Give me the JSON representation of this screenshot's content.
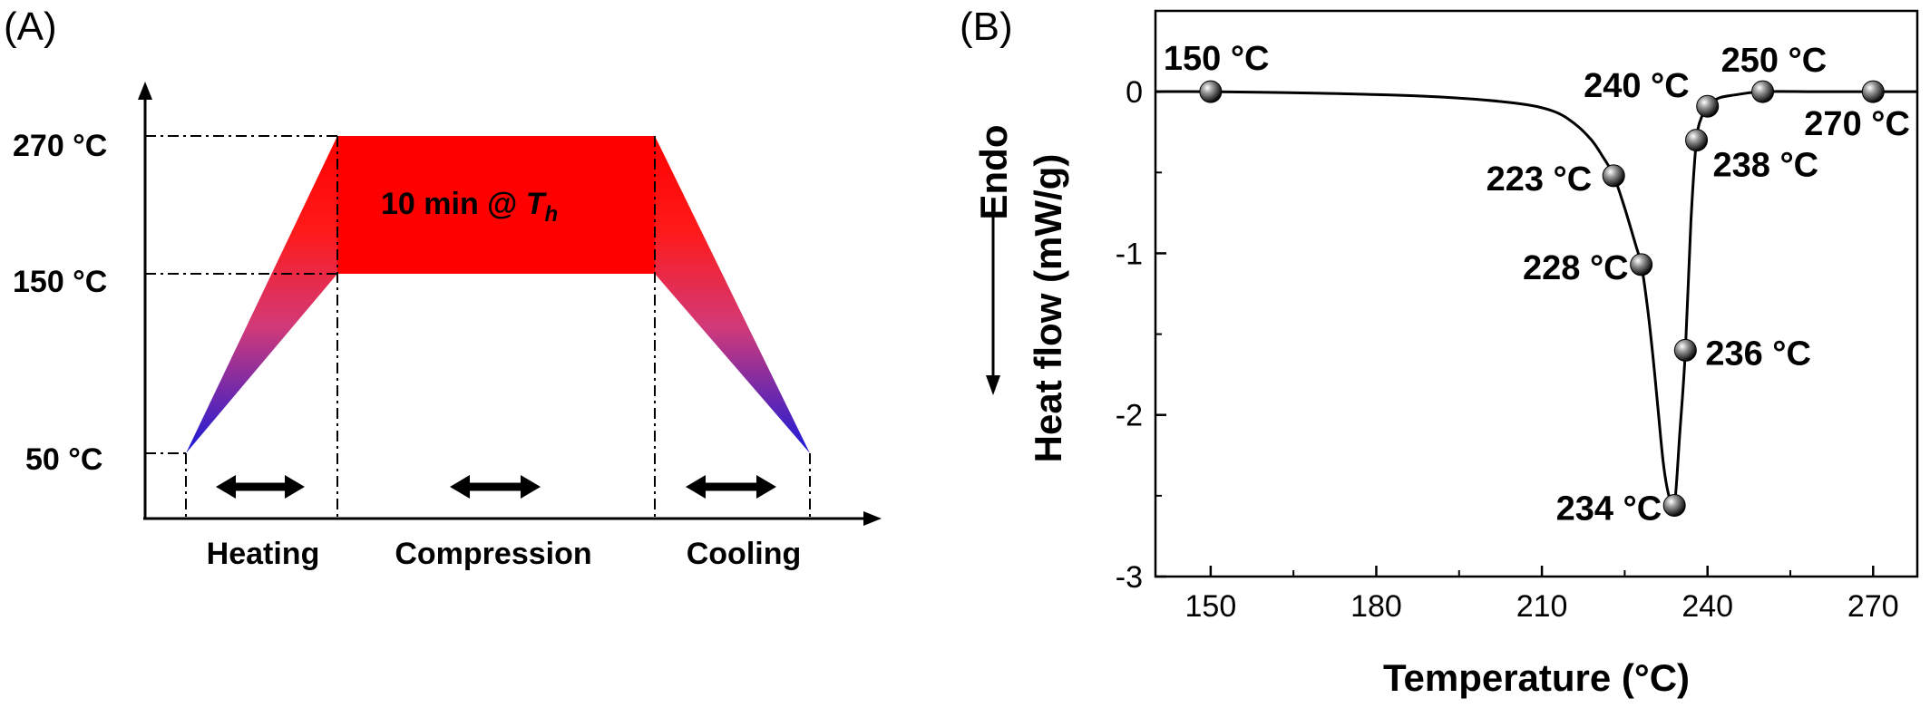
{
  "panel_a": {
    "label": "(A)",
    "y_levels": [
      "270 °C",
      "150 °C",
      "50 °C"
    ],
    "hold_text": "10 min @",
    "hold_symbol": "T",
    "hold_subscript": "h",
    "stages": [
      "Heating",
      "Compression",
      "Cooling"
    ],
    "colors": {
      "hold": "#ff0000",
      "ramp_top": "#ff0000",
      "ramp_bottom": "#1a1ad9"
    }
  },
  "panel_b": {
    "label": "(B)",
    "endo_label": "Endo",
    "ylabel": "Heat flow (mW/g)",
    "xlabel": "Temperature (°C)"
  },
  "chart_data": [
    {
      "type": "schematic",
      "levels_celsius": [
        270,
        150,
        50
      ],
      "stages": [
        "Heating",
        "Compression",
        "Cooling"
      ],
      "hold_annotation": "10 min @Th"
    },
    {
      "type": "line",
      "xlabel": "Temperature (°C)",
      "ylabel": "Heat flow (mW/g)",
      "xlim": [
        140,
        278
      ],
      "ylim": [
        -3,
        0.5
      ],
      "xticks": [
        150,
        180,
        210,
        240,
        270
      ],
      "yticks": [
        0,
        -1,
        -2,
        -3
      ],
      "xtick_labels": [
        "150",
        "180",
        "210",
        "240",
        "270"
      ],
      "ytick_labels": [
        "0",
        "-1",
        "-2",
        "-3"
      ],
      "grid": false,
      "curve": {
        "x": [
          140,
          150,
          170,
          190,
          205,
          212,
          216,
          219,
          221,
          223,
          225,
          227,
          228,
          229,
          230,
          231,
          232,
          233,
          234,
          235,
          236,
          237,
          238,
          239,
          240,
          242,
          245,
          250,
          260,
          270,
          278
        ],
        "y": [
          0,
          0,
          -0.01,
          -0.03,
          -0.07,
          -0.12,
          -0.2,
          -0.3,
          -0.4,
          -0.52,
          -0.72,
          -0.95,
          -1.07,
          -1.3,
          -1.6,
          -1.95,
          -2.3,
          -2.5,
          -2.56,
          -2.1,
          -1.6,
          -0.8,
          -0.3,
          -0.15,
          -0.09,
          -0.04,
          -0.02,
          0,
          0,
          0,
          0
        ]
      },
      "markers": [
        {
          "x": 150,
          "y": 0,
          "label": "150 °C"
        },
        {
          "x": 223,
          "y": -0.52,
          "label": "223 °C"
        },
        {
          "x": 228,
          "y": -1.07,
          "label": "228 °C"
        },
        {
          "x": 234,
          "y": -2.56,
          "label": "234 °C"
        },
        {
          "x": 236,
          "y": -1.6,
          "label": "236 °C"
        },
        {
          "x": 238,
          "y": -0.3,
          "label": "238 °C"
        },
        {
          "x": 240,
          "y": -0.09,
          "label": "240 °C"
        },
        {
          "x": 250,
          "y": 0,
          "label": "250 °C"
        },
        {
          "x": 270,
          "y": 0,
          "label": "270 °C"
        }
      ]
    }
  ]
}
